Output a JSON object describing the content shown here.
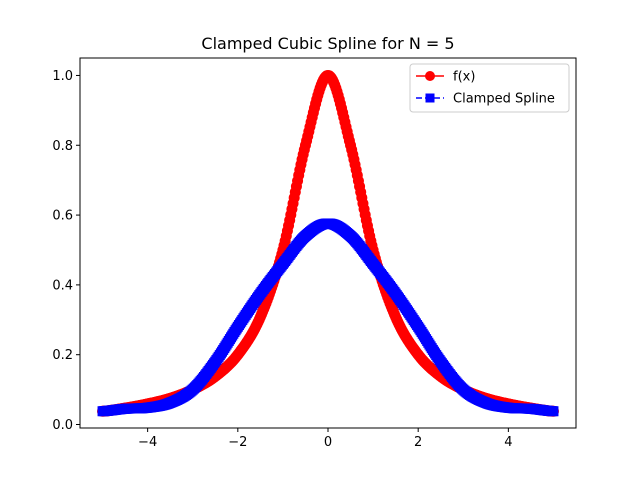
{
  "chart_data": {
    "type": "line",
    "title": "Clamped Cubic Spline for N = 5",
    "xlabel": "",
    "ylabel": "",
    "xlim": [
      -5.5,
      5.5
    ],
    "ylim": [
      -0.01,
      1.05
    ],
    "xticks": [
      -4,
      -2,
      0,
      2,
      4
    ],
    "xtick_labels": [
      "−4",
      "−2",
      "0",
      "2",
      "4"
    ],
    "yticks": [
      0.0,
      0.2,
      0.4,
      0.6,
      0.8,
      1.0
    ],
    "ytick_labels": [
      "0.0",
      "0.2",
      "0.4",
      "0.6",
      "0.8",
      "1.0"
    ],
    "grid": false,
    "legend": "top-right",
    "x": [
      -5.0,
      -4.5,
      -4.0,
      -3.5,
      -3.0,
      -2.5,
      -2.0,
      -1.5,
      -1.0,
      -0.5,
      0.0,
      0.5,
      1.0,
      1.5,
      2.0,
      2.5,
      3.0,
      3.5,
      4.0,
      4.5,
      5.0
    ],
    "series": [
      {
        "name": "f(x)",
        "color": "#ff0000",
        "marker": "circle",
        "linestyle": "solid",
        "values": [
          0.038,
          0.047,
          0.059,
          0.075,
          0.1,
          0.138,
          0.2,
          0.308,
          0.5,
          0.8,
          1.0,
          0.8,
          0.5,
          0.308,
          0.2,
          0.138,
          0.1,
          0.075,
          0.059,
          0.047,
          0.038
        ]
      },
      {
        "name": "Clamped Spline",
        "color": "#0000ff",
        "marker": "square",
        "linestyle": "dashed",
        "values": [
          0.038,
          0.045,
          0.048,
          0.062,
          0.1,
          0.18,
          0.28,
          0.375,
          0.46,
          0.54,
          0.576,
          0.54,
          0.46,
          0.375,
          0.28,
          0.18,
          0.1,
          0.062,
          0.048,
          0.045,
          0.038
        ]
      }
    ]
  }
}
